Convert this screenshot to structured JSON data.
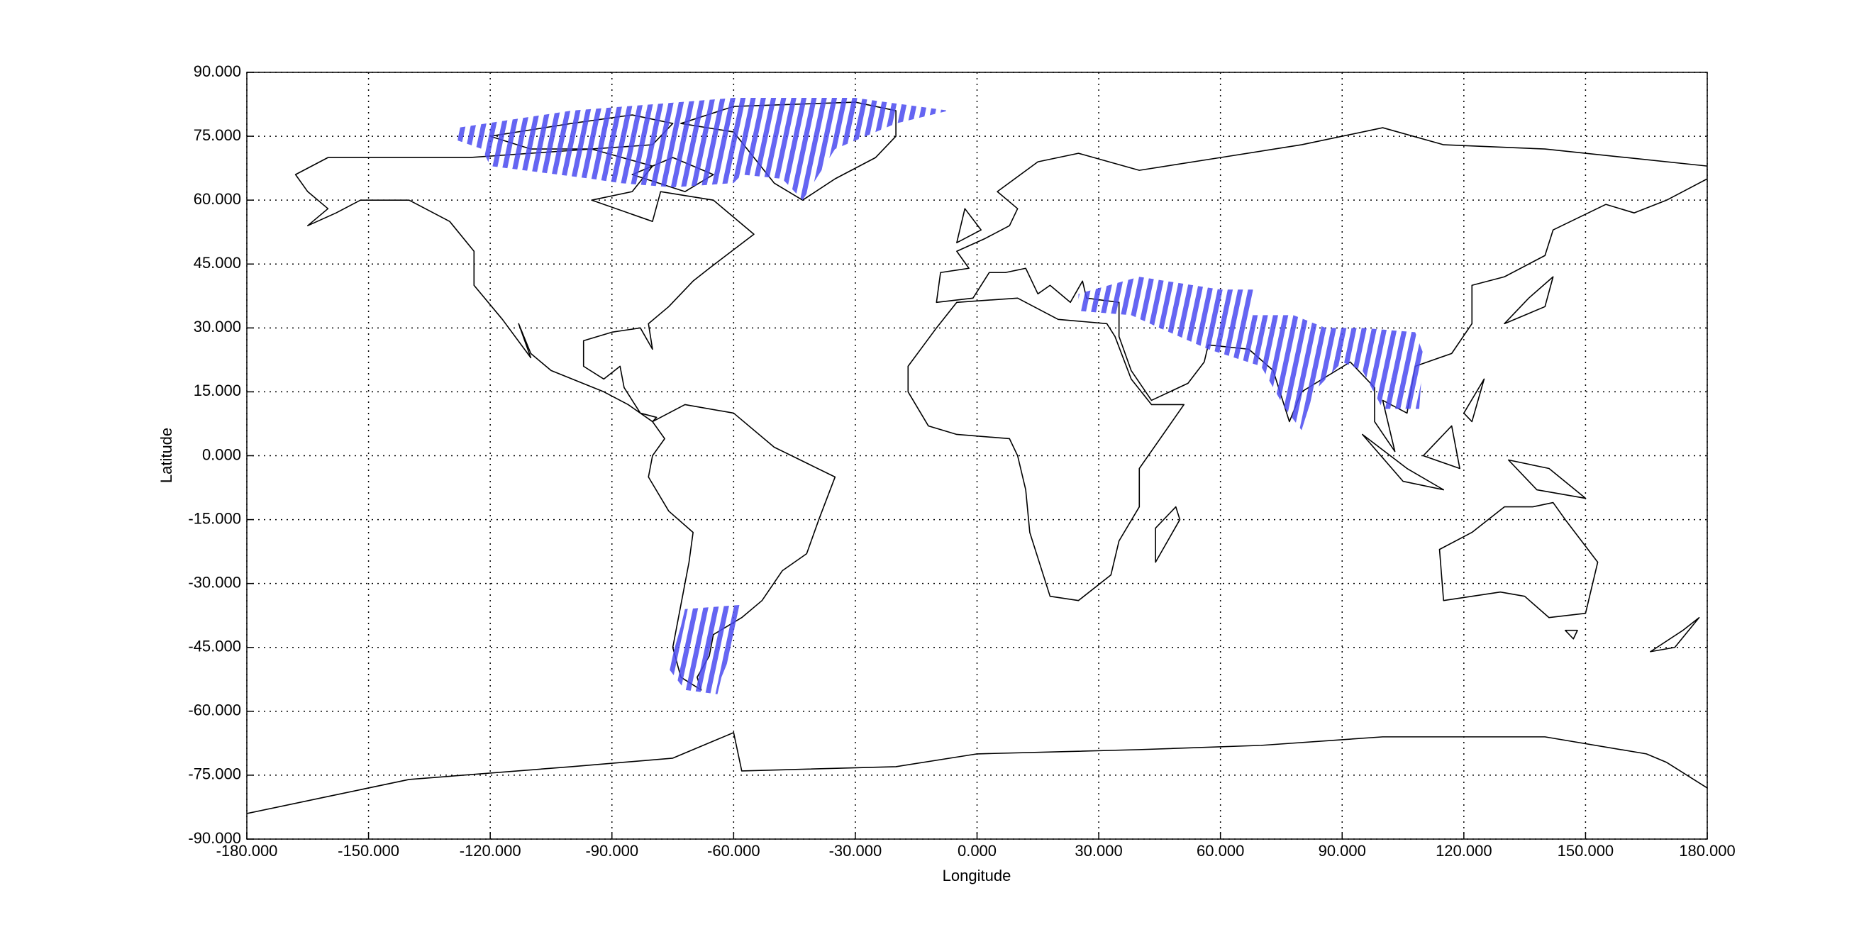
{
  "chart_data": {
    "type": "map",
    "xlabel": "Longitude",
    "ylabel": "Latitude",
    "xlim": [
      -180,
      180
    ],
    "ylim": [
      -90,
      90
    ],
    "xticks": [
      {
        "value": -180,
        "label": "-180.000"
      },
      {
        "value": -150,
        "label": "-150.000"
      },
      {
        "value": -120,
        "label": "-120.000"
      },
      {
        "value": -90,
        "label": "-90.000"
      },
      {
        "value": -60,
        "label": "-60.000"
      },
      {
        "value": -30,
        "label": "-30.000"
      },
      {
        "value": 0,
        "label": "0.000"
      },
      {
        "value": 30,
        "label": "30.000"
      },
      {
        "value": 60,
        "label": "60.000"
      },
      {
        "value": 90,
        "label": "90.000"
      },
      {
        "value": 120,
        "label": "120.000"
      },
      {
        "value": 150,
        "label": "150.000"
      },
      {
        "value": 180,
        "label": "180.000"
      }
    ],
    "yticks": [
      {
        "value": -90,
        "label": "-90.000"
      },
      {
        "value": -75,
        "label": "-75.000"
      },
      {
        "value": -60,
        "label": "-60.000"
      },
      {
        "value": -45,
        "label": "-45.000"
      },
      {
        "value": -30,
        "label": "-30.000"
      },
      {
        "value": -15,
        "label": "-15.000"
      },
      {
        "value": 0,
        "label": "0.000"
      },
      {
        "value": 15,
        "label": "15.000"
      },
      {
        "value": 30,
        "label": "30.000"
      },
      {
        "value": 45,
        "label": "45.000"
      },
      {
        "value": 60,
        "label": "60.000"
      },
      {
        "value": 75,
        "label": "75.000"
      },
      {
        "value": 90,
        "label": "90.000"
      }
    ],
    "grid": true,
    "color": "#4a4af0",
    "regions": [
      {
        "lon": [
          -128,
          -100,
          -60,
          -30,
          -7,
          -20,
          -35,
          -43,
          -48,
          -58,
          -60,
          -75,
          -88,
          -95,
          -120,
          -122,
          -128
        ],
        "lat": [
          77,
          81,
          84,
          84,
          81,
          78,
          72,
          60,
          65,
          66,
          64,
          63,
          64,
          65,
          68,
          72,
          74
        ]
      },
      {
        "lon": [
          25,
          40,
          60,
          68,
          68,
          78,
          86,
          95,
          108,
          110,
          109,
          100,
          95,
          90,
          83,
          80,
          76,
          70,
          57,
          45,
          38,
          25
        ],
        "lat": [
          38,
          42,
          39,
          39,
          33,
          33,
          30,
          30,
          29,
          24,
          11,
          11,
          20,
          22,
          15,
          6,
          11,
          21,
          25,
          30,
          33,
          34
        ]
      },
      {
        "lon": [
          -72,
          -58,
          -60,
          -63,
          -64,
          -72,
          -76,
          -73
        ],
        "lat": [
          -36,
          -35,
          -45,
          -52,
          -56,
          -55,
          -50,
          -40
        ]
      }
    ]
  }
}
